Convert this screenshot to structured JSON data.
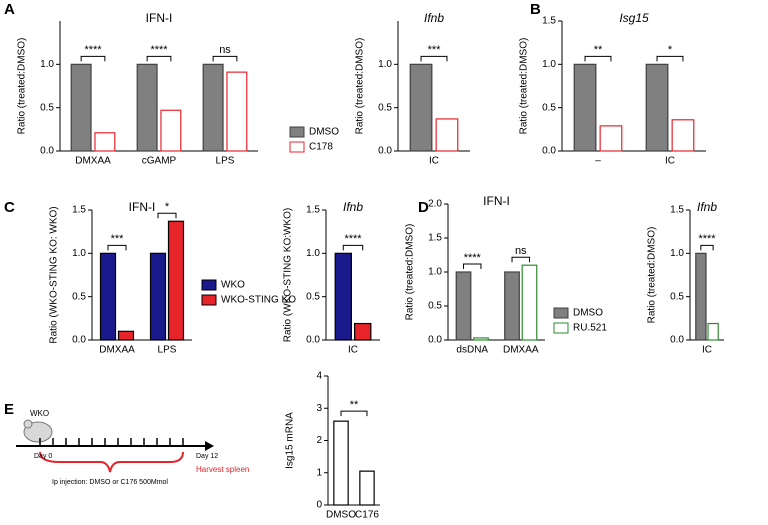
{
  "panels": {
    "a": "A",
    "b": "B",
    "c": "C",
    "d": "D",
    "e": "E"
  },
  "diagram": {
    "label": "WKO",
    "start": "Day 0",
    "end": "Day 12",
    "injection": "Ip injection: DMSO or C176 500Mmol",
    "harvest": "Harvest spleen"
  },
  "chart_data": [
    {
      "type": "bar",
      "title": "IFN-I",
      "ylabel": "Ratio (treated:DMSO)",
      "categories": [
        "DMXAA",
        "cGAMP",
        "LPS"
      ],
      "series": [
        {
          "name": "DMSO",
          "fill": "#808080",
          "color": "#404040",
          "values": [
            1,
            1,
            1
          ]
        },
        {
          "name": "C178",
          "fill": "#ffffff",
          "color": "#e8242b",
          "values": [
            0.21,
            0.47,
            0.91
          ]
        }
      ],
      "significance": [
        "****",
        "****",
        "ns"
      ],
      "ylim": [
        0,
        1.5
      ],
      "yticks": [
        {
          "value": 0,
          "label": "0.0"
        },
        {
          "value": 0.5,
          "label": "0.5"
        },
        {
          "value": 1,
          "label": "1.0"
        }
      ],
      "legend": true
    },
    {
      "type": "bar",
      "title": "Ifnb",
      "title_italic": true,
      "ylabel": "Ratio (treated:DMSO)",
      "categories": [
        "IC"
      ],
      "series": [
        {
          "fill": "#808080",
          "color": "#404040",
          "values": [
            1
          ]
        },
        {
          "fill": "#ffffff",
          "color": "#e8242b",
          "values": [
            0.37
          ]
        }
      ],
      "significance": [
        "***"
      ],
      "ylim": [
        0,
        1.5
      ],
      "yticks": [
        {
          "value": 0,
          "label": "0.0"
        },
        {
          "value": 0.5,
          "label": "0.5"
        },
        {
          "value": 1,
          "label": "1.0"
        }
      ],
      "legend": false
    },
    {
      "type": "bar",
      "title": "Isg15",
      "title_italic": true,
      "ylabel": "Ratio (treated:DMSO)",
      "categories": [
        "–",
        "IC"
      ],
      "series": [
        {
          "fill": "#808080",
          "color": "#404040",
          "values": [
            1,
            1
          ]
        },
        {
          "fill": "#ffffff",
          "color": "#e8242b",
          "values": [
            0.29,
            0.36
          ]
        }
      ],
      "significance": [
        "**",
        "*"
      ],
      "ylim": [
        0,
        1.5
      ],
      "yticks": [
        {
          "value": 0,
          "label": "0.0"
        },
        {
          "value": 0.5,
          "label": "0.5"
        },
        {
          "value": 1,
          "label": "1.0"
        },
        {
          "value": 1.5,
          "label": "1.5"
        }
      ],
      "legend": false
    },
    {
      "type": "bar",
      "title": "IFN-I",
      "ylabel": "Ratio (WKO-STING KO: WKO)",
      "categories": [
        "DMXAA",
        "LPS"
      ],
      "series": [
        {
          "name": "WKO",
          "fill": "#1a1a8c",
          "color": "#000000",
          "values": [
            1,
            1
          ]
        },
        {
          "name": "WKO-STING KO",
          "fill": "#e8242b",
          "color": "#000000",
          "values": [
            0.1,
            1.37
          ]
        }
      ],
      "significance": [
        "***",
        "*"
      ],
      "ylim": [
        0,
        1.5
      ],
      "yticks": [
        {
          "value": 0,
          "label": "0.0"
        },
        {
          "value": 0.5,
          "label": "0.5"
        },
        {
          "value": 1,
          "label": "1.0"
        },
        {
          "value": 1.5,
          "label": "1.5"
        }
      ],
      "legend": true
    },
    {
      "type": "bar",
      "title": "Ifnb",
      "title_italic": true,
      "ylabel": "Ratio (WKO-STING KO:WKO)",
      "categories": [
        "IC"
      ],
      "series": [
        {
          "fill": "#1a1a8c",
          "color": "#000000",
          "values": [
            1
          ]
        },
        {
          "fill": "#e8242b",
          "color": "#000000",
          "values": [
            0.19
          ]
        }
      ],
      "significance": [
        "****"
      ],
      "ylim": [
        0,
        1.5
      ],
      "yticks": [
        {
          "value": 0,
          "label": "0.0"
        },
        {
          "value": 0.5,
          "label": "0.5"
        },
        {
          "value": 1,
          "label": "1.0"
        },
        {
          "value": 1.5,
          "label": "1.5"
        }
      ],
      "legend": false
    },
    {
      "type": "bar",
      "title": "IFN-I",
      "ylabel": "Ratio (treated:DMSO)",
      "categories": [
        "dsDNA",
        "DMXAA"
      ],
      "series": [
        {
          "name": "DMSO",
          "fill": "#808080",
          "color": "#404040",
          "values": [
            1,
            1
          ]
        },
        {
          "name": "RU.521",
          "fill": "#ffffff",
          "color": "#2e8b2e",
          "values": [
            0.03,
            1.1
          ]
        }
      ],
      "significance": [
        "****",
        "ns"
      ],
      "ylim": [
        0,
        2
      ],
      "yticks": [
        {
          "value": 0,
          "label": "0.0"
        },
        {
          "value": 0.5,
          "label": "0.5"
        },
        {
          "value": 1,
          "label": "1.0"
        },
        {
          "value": 1.5,
          "label": "1.5"
        },
        {
          "value": 2,
          "label": "2.0"
        }
      ],
      "legend": true
    },
    {
      "type": "bar",
      "title": "Ifnb",
      "title_italic": true,
      "ylabel": "Ratio (treated:DMSO)",
      "categories": [
        "IC"
      ],
      "series": [
        {
          "fill": "#808080",
          "color": "#404040",
          "values": [
            1
          ]
        },
        {
          "fill": "#ffffff",
          "color": "#2e8b2e",
          "values": [
            0.19
          ]
        }
      ],
      "significance": [
        "****"
      ],
      "ylim": [
        0,
        1.5
      ],
      "yticks": [
        {
          "value": 0,
          "label": "0.0"
        },
        {
          "value": 0.5,
          "label": "0.5"
        },
        {
          "value": 1,
          "label": "1.0"
        },
        {
          "value": 1.5,
          "label": "1.5"
        }
      ],
      "legend": false
    },
    {
      "type": "bar",
      "ylabel": "Isg15 mRNA",
      "categories": [
        "DMSO",
        "C176"
      ],
      "series": [
        {
          "fill": "#ffffff",
          "color": "#000000",
          "values": [
            2.6,
            1.05
          ]
        }
      ],
      "significance": [
        "**"
      ],
      "ylim": [
        0,
        4
      ],
      "yticks": [
        0,
        1,
        2,
        3,
        4
      ],
      "legend": false
    }
  ]
}
